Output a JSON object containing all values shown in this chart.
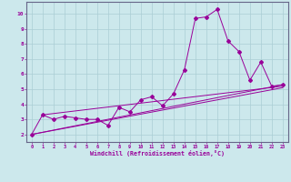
{
  "background_color": "#cce8ec",
  "grid_color": "#aacdd4",
  "line_color": "#990099",
  "axis_line_color": "#666688",
  "xlabel": "Windchill (Refroidissement éolien,°C)",
  "ylabel_ticks": [
    2,
    3,
    4,
    5,
    6,
    7,
    8,
    9,
    10
  ],
  "xlim": [
    -0.5,
    23.5
  ],
  "ylim": [
    1.5,
    10.8
  ],
  "xticks": [
    0,
    1,
    2,
    3,
    4,
    5,
    6,
    7,
    8,
    9,
    10,
    11,
    12,
    13,
    14,
    15,
    16,
    17,
    18,
    19,
    20,
    21,
    22,
    23
  ],
  "jagged_x": [
    0,
    1,
    2,
    3,
    4,
    5,
    6,
    7,
    8,
    9,
    10,
    11,
    12,
    13,
    14,
    15,
    16,
    17,
    18,
    19,
    20,
    21,
    22,
    23
  ],
  "jagged_y": [
    2.0,
    3.3,
    3.0,
    3.2,
    3.1,
    3.0,
    3.0,
    2.6,
    3.8,
    3.5,
    4.3,
    4.5,
    3.9,
    4.7,
    6.3,
    9.7,
    9.8,
    10.3,
    8.2,
    7.5,
    5.6,
    6.8,
    5.2,
    5.3
  ],
  "straight_lines": [
    {
      "x": [
        0,
        23
      ],
      "y": [
        2.0,
        5.1
      ]
    },
    {
      "x": [
        0,
        23
      ],
      "y": [
        2.0,
        5.3
      ]
    },
    {
      "x": [
        1,
        23
      ],
      "y": [
        3.3,
        5.2
      ]
    }
  ]
}
